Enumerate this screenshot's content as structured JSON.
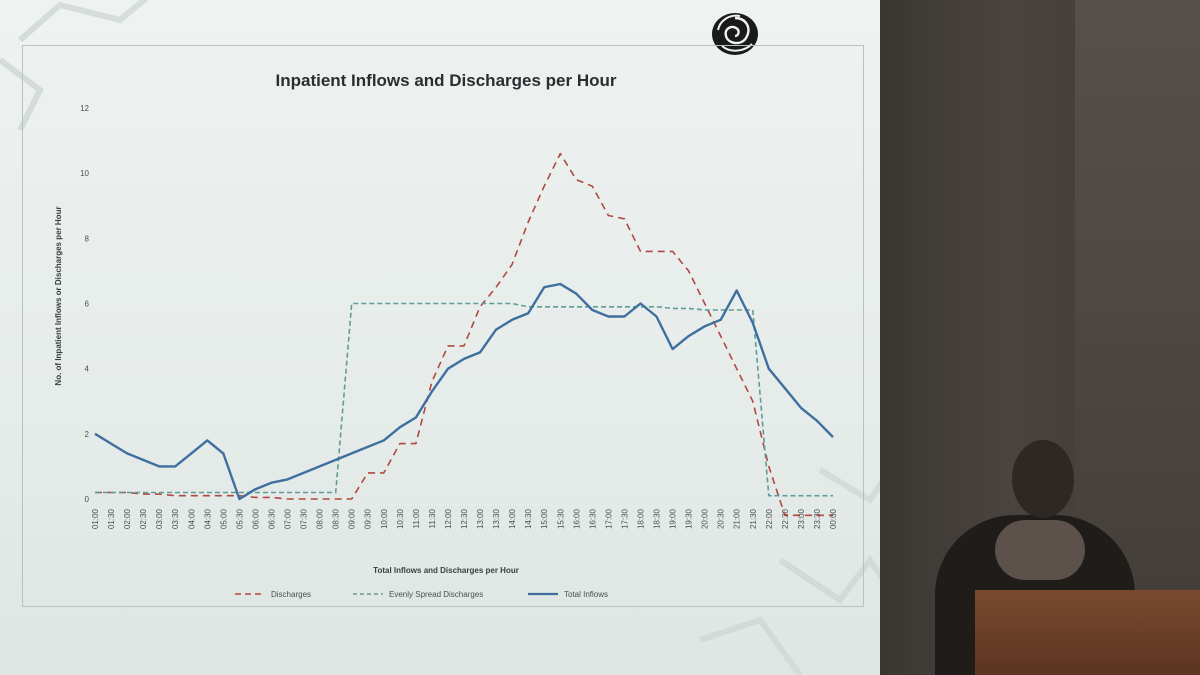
{
  "chart_data": {
    "type": "line",
    "title": "Inpatient Inflows and Discharges per Hour",
    "xlabel": "Total Inflows and Discharges per Hour",
    "ylabel": "No. of Inpatient Inflows or Discharges per Hour",
    "ylim": [
      0,
      12
    ],
    "yticks": [
      0,
      2,
      4,
      6,
      8,
      10,
      12
    ],
    "categories": [
      "01:00",
      "01:30",
      "02:00",
      "02:30",
      "03:00",
      "03:30",
      "04:00",
      "04:30",
      "05:00",
      "05:30",
      "06:00",
      "06:30",
      "07:00",
      "07:30",
      "08:00",
      "08:30",
      "09:00",
      "09:30",
      "10:00",
      "10:30",
      "11:00",
      "11:30",
      "12:00",
      "12:30",
      "13:00",
      "13:30",
      "14:00",
      "14:30",
      "15:00",
      "15:30",
      "16:00",
      "16:30",
      "17:00",
      "17:30",
      "18:00",
      "18:30",
      "19:00",
      "19:30",
      "20:00",
      "20:30",
      "21:00",
      "21:30",
      "22:00",
      "22:30",
      "23:00",
      "23:30",
      "00:00"
    ],
    "series": [
      {
        "name": "Discharges",
        "style": "dashed",
        "color": "#b0493e",
        "values": [
          0.2,
          0.2,
          0.2,
          0.15,
          0.15,
          0.1,
          0.1,
          0.1,
          0.1,
          0.1,
          0.05,
          0.05,
          0,
          0,
          0,
          0,
          0,
          0.8,
          0.8,
          1.7,
          1.7,
          3.6,
          4.7,
          4.7,
          5.9,
          6.5,
          7.2,
          8.5,
          9.6,
          10.6,
          9.8,
          9.6,
          8.7,
          8.6,
          7.6,
          7.6,
          7.6,
          7.0,
          6.0,
          5.0,
          4.0,
          3.0,
          1.0,
          -0.5,
          -0.5,
          -0.5,
          -0.5
        ]
      },
      {
        "name": "Evenly Spread Discharges",
        "style": "dashed",
        "color": "#5f9c98",
        "values": [
          0.2,
          0.2,
          0.2,
          0.2,
          0.2,
          0.2,
          0.2,
          0.2,
          0.2,
          0.2,
          0.2,
          0.2,
          0.2,
          0.2,
          0.2,
          0.2,
          6.0,
          6.0,
          6.0,
          6.0,
          6.0,
          6.0,
          6.0,
          6.0,
          6.0,
          6.0,
          6.0,
          5.9,
          5.9,
          5.9,
          5.9,
          5.9,
          5.9,
          5.9,
          5.9,
          5.9,
          5.85,
          5.85,
          5.8,
          5.8,
          5.8,
          5.8,
          0.1,
          0.1,
          0.1,
          0.1,
          0.1
        ]
      },
      {
        "name": "Total Inflows",
        "style": "solid",
        "color": "#3f6f9f",
        "values": [
          2.0,
          1.7,
          1.4,
          1.2,
          1.0,
          1.0,
          1.4,
          1.8,
          1.4,
          0,
          0.3,
          0.5,
          0.6,
          0.8,
          1.0,
          1.2,
          1.4,
          1.6,
          1.8,
          2.2,
          2.5,
          3.3,
          4.0,
          4.3,
          4.5,
          5.2,
          5.5,
          5.7,
          6.5,
          6.6,
          6.3,
          5.8,
          5.6,
          5.6,
          6.0,
          5.6,
          4.6,
          5.0,
          5.3,
          5.5,
          6.4,
          5.4,
          4.0,
          3.4,
          2.8,
          2.4,
          1.9
        ]
      }
    ],
    "legend_position": "bottom",
    "grid": false
  }
}
